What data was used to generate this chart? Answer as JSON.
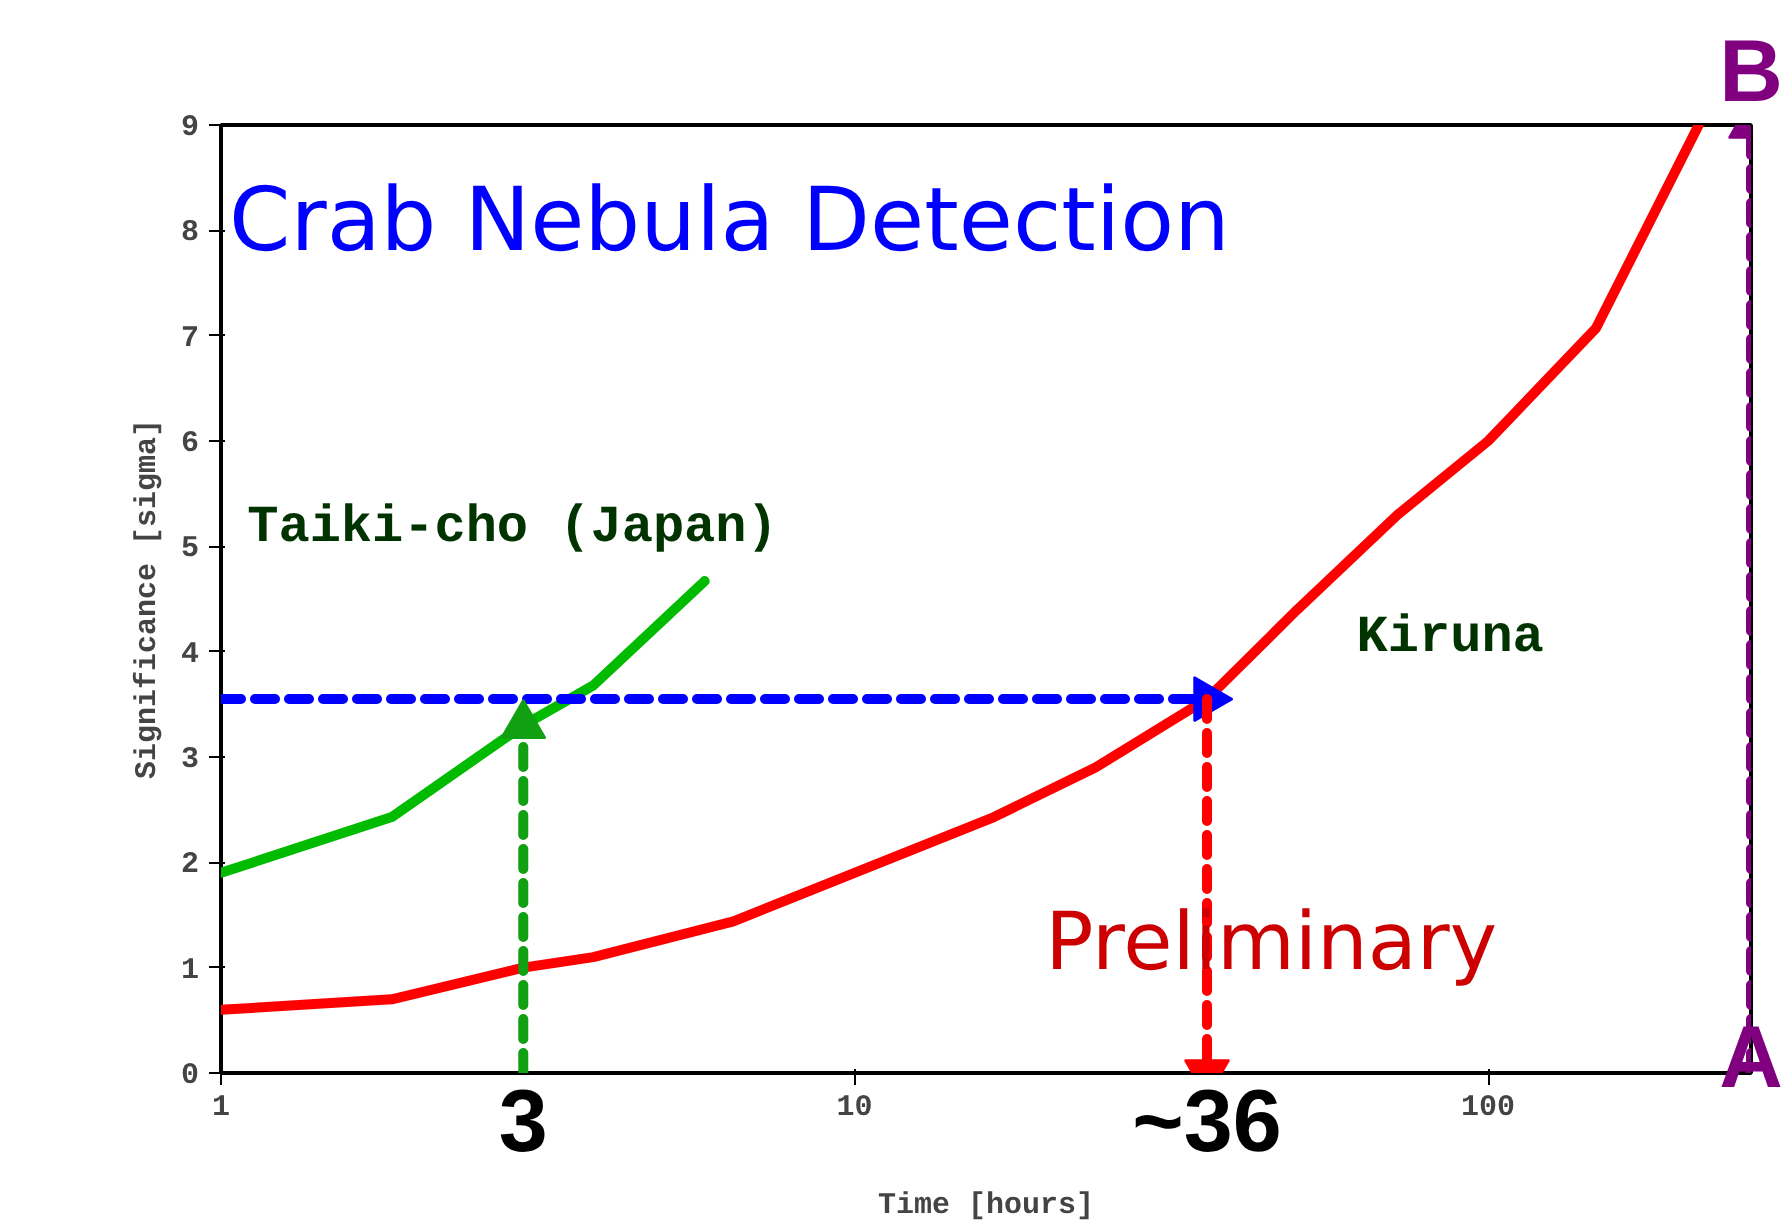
{
  "chart_data": {
    "type": "line",
    "title": "Crab Nebula Detection",
    "xlabel": "Time [hours]",
    "ylabel": "Significance [sigma]",
    "log": "x",
    "xlim": [
      1,
      260
    ],
    "ylim": [
      0,
      9
    ],
    "xticks": [
      1,
      10,
      100
    ],
    "yticks": [
      0,
      1,
      2,
      3,
      4,
      5,
      6,
      7,
      8,
      9
    ],
    "grid": false,
    "marker": "none",
    "series": [
      {
        "name": "Taiki-cho (Japan)",
        "color": "#00bb00",
        "x": [
          1,
          1.86,
          3,
          3.87,
          5.8
        ],
        "values": [
          1.9,
          2.43,
          3.3,
          3.68,
          4.67
        ]
      },
      {
        "name": "Kiruna",
        "color": "#ff0000",
        "x": [
          1,
          1.86,
          3,
          3.87,
          6.44,
          10,
          16.6,
          24,
          36,
          50,
          72,
          100,
          148,
          215
        ],
        "values": [
          0.6,
          0.7,
          1.0,
          1.1,
          1.44,
          1.9,
          2.43,
          2.9,
          3.55,
          4.4,
          5.3,
          6.0,
          7.07,
          9
        ]
      },
      {
        "type": "line",
        "line_style": "dashed",
        "marker": "triangle",
        "color": "#0000ff",
        "x": [
          1,
          36
        ],
        "values": [
          3.55,
          3.55
        ]
      },
      {
        "type": "line",
        "line_style": "dashed",
        "marker": "triangle",
        "color": "#11a011",
        "x": [
          3,
          3
        ],
        "values": [
          0,
          3.3
        ]
      },
      {
        "type": "line",
        "line_style": "dashed",
        "marker": "triangle",
        "color": "#ff0000",
        "x": [
          36,
          36
        ],
        "values": [
          3.55,
          0
        ]
      },
      {
        "type": "line",
        "line_style": "dashed",
        "marker": "triangle",
        "color": "#800080",
        "x": [
          260,
          260
        ],
        "values": [
          0,
          9
        ]
      }
    ],
    "annotations": [
      {
        "text": "3",
        "x": 3,
        "y": 0
      },
      {
        "text": "~36",
        "x": 36,
        "y": 0
      },
      "Preliminary",
      {
        "text": "A",
        "x": 260,
        "y": 0
      },
      {
        "text": "B",
        "x": 260,
        "y": 9
      }
    ]
  }
}
